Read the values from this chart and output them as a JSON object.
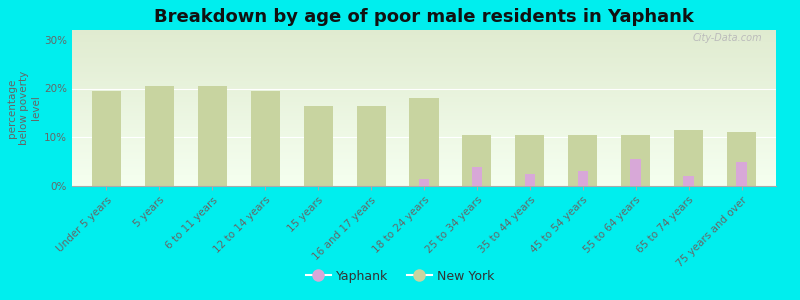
{
  "title": "Breakdown by age of poor male residents in Yaphank",
  "ylabel": "percentage\nbelow poverty\nlevel",
  "categories": [
    "Under 5 years",
    "5 years",
    "6 to 11 years",
    "12 to 14 years",
    "15 years",
    "16 and 17 years",
    "18 to 24 years",
    "25 to 34 years",
    "35 to 44 years",
    "45 to 54 years",
    "55 to 64 years",
    "65 to 74 years",
    "75 years and over"
  ],
  "yaphank": [
    0,
    0,
    0,
    0,
    0,
    0,
    1.5,
    4.0,
    2.5,
    3.0,
    5.5,
    2.0,
    5.0
  ],
  "new_york": [
    19.5,
    20.5,
    20.5,
    19.5,
    16.5,
    16.5,
    18.0,
    10.5,
    10.5,
    10.5,
    10.5,
    11.5,
    11.0
  ],
  "yaphank_color": "#d8a8d8",
  "new_york_color": "#c8d4a0",
  "background_color": "#00eeee",
  "ylim": [
    0,
    32
  ],
  "yticks": [
    0,
    10,
    20,
    30
  ],
  "ytick_labels": [
    "0%",
    "10%",
    "20%",
    "30%"
  ],
  "title_fontsize": 13,
  "axis_label_fontsize": 7.5,
  "tick_fontsize": 7.5,
  "legend_yaphank": "Yaphank",
  "legend_new_york": "New York",
  "watermark": "City-Data.com"
}
